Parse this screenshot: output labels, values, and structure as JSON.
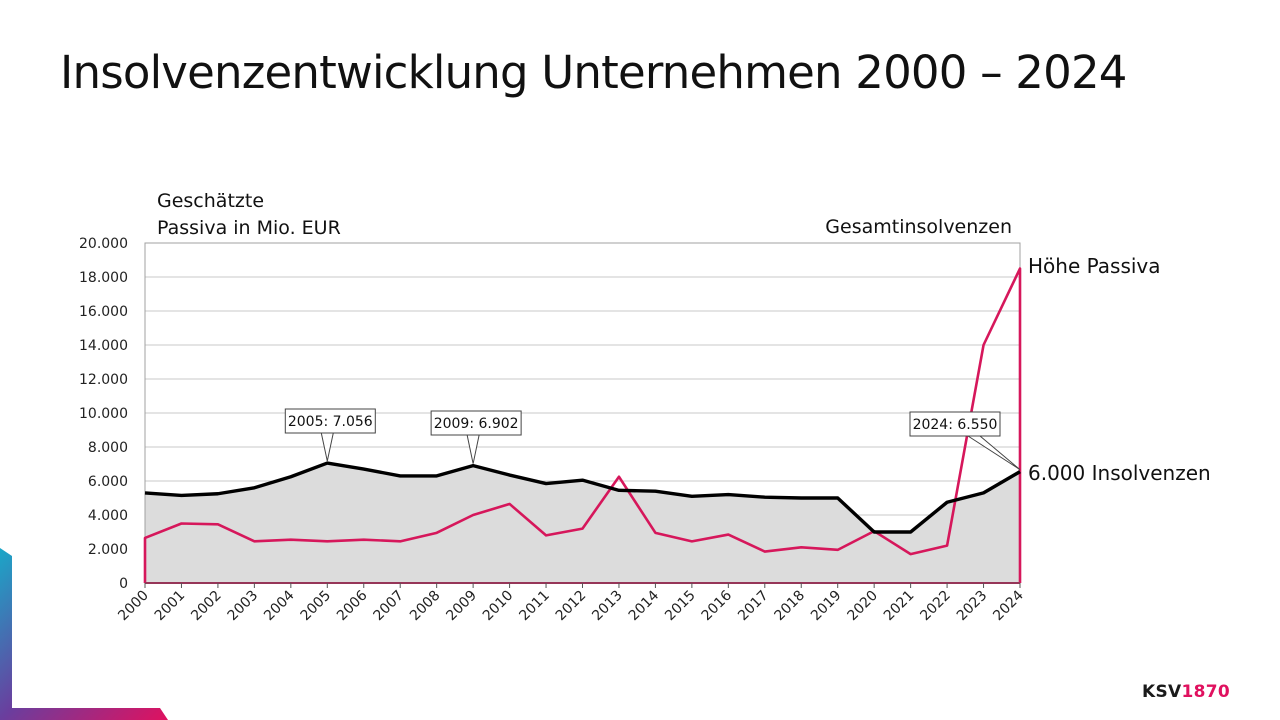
{
  "page": {
    "title": "Insolvenzentwicklung Unternehmen 2000 – 2024"
  },
  "brand": {
    "logo_part1": "KSV",
    "logo_part2": "1870",
    "color_dark": "#1a1a1a",
    "color_accent": "#e0115f"
  },
  "chart_data": {
    "type": "line",
    "ylabel": "Geschätzte\nPassiva in Mio. EUR",
    "ylabel_right": "Gesamtinsolvenzen",
    "ylim": [
      0,
      20000
    ],
    "y_ticks": [
      "0",
      "2.000",
      "4.000",
      "6.000",
      "8.000",
      "10.000",
      "12.000",
      "14.000",
      "16.000",
      "18.000",
      "20.000"
    ],
    "y_tick_values": [
      0,
      2000,
      4000,
      6000,
      8000,
      10000,
      12000,
      14000,
      16000,
      18000,
      20000
    ],
    "categories": [
      "2000",
      "2001",
      "2002",
      "2003",
      "2004",
      "2005",
      "2006",
      "2007",
      "2008",
      "2009",
      "2010",
      "2011",
      "2012",
      "2013",
      "2014",
      "2015",
      "2016",
      "2017",
      "2018",
      "2019",
      "2020",
      "2021",
      "2022",
      "2023",
      "2024"
    ],
    "grid": true,
    "series": [
      {
        "name": "6.000 Insolvenzen",
        "style": "area-line",
        "color": "#000000",
        "fill": "#dcdcdc",
        "values": [
          5300,
          5150,
          5250,
          5600,
          6250,
          7056,
          6700,
          6300,
          6300,
          6902,
          6350,
          5850,
          6050,
          5450,
          5400,
          5100,
          5200,
          5050,
          5000,
          5000,
          3000,
          3000,
          4750,
          5300,
          6550
        ]
      },
      {
        "name": "Höhe Passiva",
        "style": "line",
        "color": "#d6175b",
        "values": [
          2650,
          3500,
          3450,
          2450,
          2550,
          2450,
          2550,
          2450,
          2950,
          4000,
          4650,
          2800,
          3200,
          6250,
          2950,
          2450,
          2850,
          1850,
          2100,
          1950,
          3050,
          1700,
          2200,
          14000,
          18500
        ]
      }
    ],
    "annotations": [
      {
        "text": "2005: 7.056",
        "x": "2005",
        "y": 7056
      },
      {
        "text": "2009: 6.902",
        "x": "2009",
        "y": 6902
      },
      {
        "text": "2024: 6.550",
        "x": "2024",
        "y": 6550
      }
    ]
  }
}
